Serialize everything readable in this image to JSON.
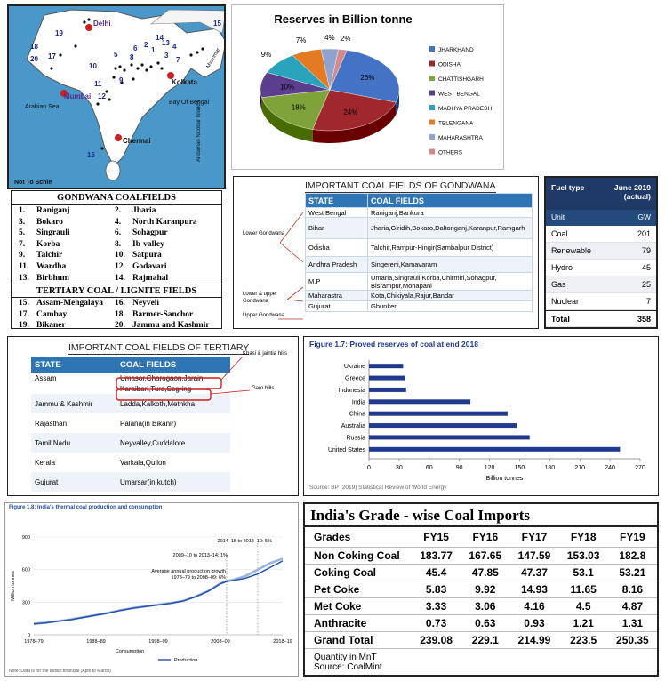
{
  "map": {
    "labels": [
      "Delhi",
      "Mumbai",
      "Kolkata",
      "Chennai",
      "Arabian Sea",
      "Bay Of Bengal",
      "Andaman Nicobar Islands",
      "Myanmar",
      "Not To Schle"
    ],
    "numbers": [
      "19",
      "17",
      "18",
      "10",
      "5",
      "1",
      "2",
      "11",
      "12",
      "9",
      "14",
      "15",
      "8",
      "3",
      "4",
      "7",
      "13",
      "6",
      "16",
      "20"
    ]
  },
  "gondwana_list": {
    "title_gondwana": "GONDWANA COALFIELDS",
    "title_tertiary": "TERTIARY COAL / LIGNITE FIELDS",
    "gondwana_rows": [
      [
        "1.",
        "Raniganj",
        "2.",
        "Jharia"
      ],
      [
        "3.",
        "Bokaro",
        "4.",
        "North Karanpura"
      ],
      [
        "5.",
        "Singrauli",
        "6.",
        "Sohagpur"
      ],
      [
        "7.",
        "Korba",
        "8.",
        "Ib-valley"
      ],
      [
        "9.",
        "Talchir",
        "10.",
        "Satpura"
      ],
      [
        "11.",
        "Wardha",
        "12.",
        "Godavari"
      ],
      [
        "13.",
        "Birbhum",
        "14.",
        "Rajmahal"
      ]
    ],
    "tertiary_rows": [
      [
        "15.",
        "Assam-Mehgalaya",
        "16.",
        "Neyveli"
      ],
      [
        "17.",
        "Cambay",
        "18.",
        "Barmer-Sanchor"
      ],
      [
        "19.",
        "Bikaner",
        "20.",
        "Jammu and Kashmir"
      ]
    ]
  },
  "gondwana_fields": {
    "title": "IMPORTANT COAL FIELDS OF GONDWANA",
    "headers": [
      "STATE",
      "COAL FIELDS"
    ],
    "rows": [
      [
        "West Bengal",
        "Raniganj,Bankura"
      ],
      [
        "Bihar",
        "Jharia,Giridih,Bokaro,Daltonganj,Karanpur,Ramgarh"
      ],
      [
        "Odisha",
        "Talchir,Rampur-Hingir(Sambalpur District)"
      ],
      [
        "Andhra Pradesh",
        "Singereni,Kamavaram"
      ],
      [
        "M.P",
        "Umaria,Singrauli,Korba,Chirmiri,Sohagpur, Bisrampur,Mohapani"
      ],
      [
        "Maharastra",
        "Kota,Chikiyala,Rajur,Bandar"
      ],
      [
        "Gujurat",
        "Ghunkeri"
      ]
    ],
    "side_labels": [
      "Lower Gondwana",
      "Lower & upper Gondwana",
      "Upper Gondwana"
    ]
  },
  "tertiary_fields": {
    "title": "IMPORTANT COAL FIELDS OF TERTIARY",
    "headers": [
      "STATE",
      "COAL FIELDS"
    ],
    "rows": [
      [
        "Assam",
        "Umasor,Charogaon,Jarain"
      ],
      [
        "",
        "Karaibari,Tura,Sogring"
      ],
      [
        "Jammu & Kashmir",
        "Ladda,Kalkoth,Methkha"
      ],
      [
        "Rajasthan",
        "Palana(in Bikanir)"
      ],
      [
        "Tamil Nadu",
        "Neyvalley,Cuddalore"
      ],
      [
        "Kerala",
        "Varkala,Quilon"
      ],
      [
        "Gujurat",
        "Umarsar(in kutch)"
      ]
    ],
    "callouts": [
      "Khasi & jaintia hills",
      "Garo hills"
    ]
  },
  "fuel": {
    "header_left": "Fuel type",
    "header_right": "June 2019 (actual)",
    "unit_left": "Unit",
    "unit_right": "GW",
    "rows": [
      [
        "Coal",
        "201"
      ],
      [
        "Renewable",
        "79"
      ],
      [
        "Hydro",
        "45"
      ],
      [
        "Gas",
        "25"
      ],
      [
        "Nuclear",
        "7"
      ]
    ],
    "total": [
      "Total",
      "358"
    ]
  },
  "imports": {
    "title": "India's Grade - wise Coal Imports",
    "headers": [
      "Grades",
      "FY15",
      "FY16",
      "FY17",
      "FY18",
      "FY19"
    ],
    "rows": [
      [
        "Non Coking Coal",
        "183.77",
        "167.65",
        "147.59",
        "153.03",
        "182.8"
      ],
      [
        "Coking Coal",
        "45.4",
        "47.85",
        "47.37",
        "53.1",
        "53.21"
      ],
      [
        "Pet Coke",
        "5.83",
        "9.92",
        "14.93",
        "11.65",
        "8.16"
      ],
      [
        "Met Coke",
        "3.33",
        "3.06",
        "4.16",
        "4.5",
        "4.87"
      ],
      [
        "Anthracite",
        "0.73",
        "0.63",
        "0.93",
        "1.21",
        "1.31"
      ],
      [
        "Grand Total",
        "239.08",
        "229.1",
        "214.99",
        "223.5",
        "250.35"
      ]
    ],
    "note1": "Quantity in MnT",
    "note2": "Source: CoalMint"
  },
  "colors": {
    "blue_header": "#2e75b6",
    "bar_blue": "#1f3a8f",
    "prod_line": "#1f4fa8",
    "circle_red": "#cc1f1f"
  },
  "chart_data": [
    {
      "type": "pie",
      "title": "Reserves in Billion tonne",
      "labels": [
        "JHARKHAND",
        "ODISHA",
        "CHATTISHGARH",
        "WEST BENGAL",
        "MADHYA PRADESH",
        "TELENGANA",
        "MAHARASHTRA",
        "OTHERS"
      ],
      "values": [
        26,
        24,
        18,
        10,
        9,
        7,
        4,
        2
      ],
      "value_labels": [
        "26%",
        "24%",
        "18%",
        "10%",
        "9%",
        "7%",
        "4%",
        "2%"
      ],
      "colors": [
        "#4472c4",
        "#a0282c",
        "#7fa33a",
        "#5b3f8e",
        "#2aa3bd",
        "#e47b24",
        "#8ea4cf",
        "#d48a8a"
      ],
      "legend": "right"
    },
    {
      "type": "bar",
      "title": "Figure 1.7: Proved reserves of coal at end 2018",
      "categories": [
        "Ukraine",
        "Greece",
        "Indonesia",
        "India",
        "China",
        "Australia",
        "Russia",
        "United States"
      ],
      "values": [
        34,
        36,
        37,
        101,
        138,
        147,
        160,
        250
      ],
      "xlabel": "Billion tonnes",
      "xlim": [
        0,
        270
      ],
      "xticks": [
        "0",
        "30",
        "60",
        "90",
        "120",
        "150",
        "180",
        "210",
        "240",
        "270"
      ],
      "source": "Source: BP (2019) Statistical Review of World Energy",
      "orientation": "horizontal"
    },
    {
      "type": "line",
      "title": "Figure 1.8: India's thermal coal production and consumption",
      "ylabel": "Million tonnes",
      "ylim": [
        0,
        900
      ],
      "yticks": [
        "0",
        "300",
        "600",
        "900"
      ],
      "xticks": [
        "1978–79",
        "1988–89",
        "1998–99",
        "2008–09",
        "2018–19"
      ],
      "annotations": [
        "2014–15 to 2018–19: 5%",
        "2009–10 to 2013–14: 1%",
        "Average annual production growth",
        "1978–79 to 2008–09: 6%"
      ],
      "legend_labels": [
        "Consumption",
        "Production"
      ],
      "note": "Note: Data is for the Indian financial (April to March)",
      "series": [
        {
          "name": "Production",
          "x": [
            1978,
            1980,
            1982,
            1984,
            1986,
            1988,
            1990,
            1992,
            1994,
            1996,
            1998,
            2000,
            2002,
            2004,
            2006,
            2008,
            2009,
            2010,
            2012,
            2014,
            2016,
            2018
          ],
          "y": [
            100,
            110,
            125,
            140,
            160,
            180,
            200,
            225,
            245,
            260,
            275,
            290,
            310,
            350,
            400,
            470,
            490,
            500,
            520,
            560,
            620,
            680
          ]
        },
        {
          "name": "Consumption",
          "x": [
            1978,
            1980,
            1982,
            1984,
            1986,
            1988,
            1990,
            1992,
            1994,
            1996,
            1998,
            2000,
            2002,
            2004,
            2006,
            2008,
            2009,
            2010,
            2012,
            2014,
            2016,
            2018
          ],
          "y": [
            102,
            112,
            127,
            142,
            162,
            182,
            202,
            227,
            247,
            262,
            277,
            292,
            312,
            352,
            402,
            472,
            495,
            505,
            540,
            600,
            660,
            700
          ]
        }
      ]
    }
  ]
}
